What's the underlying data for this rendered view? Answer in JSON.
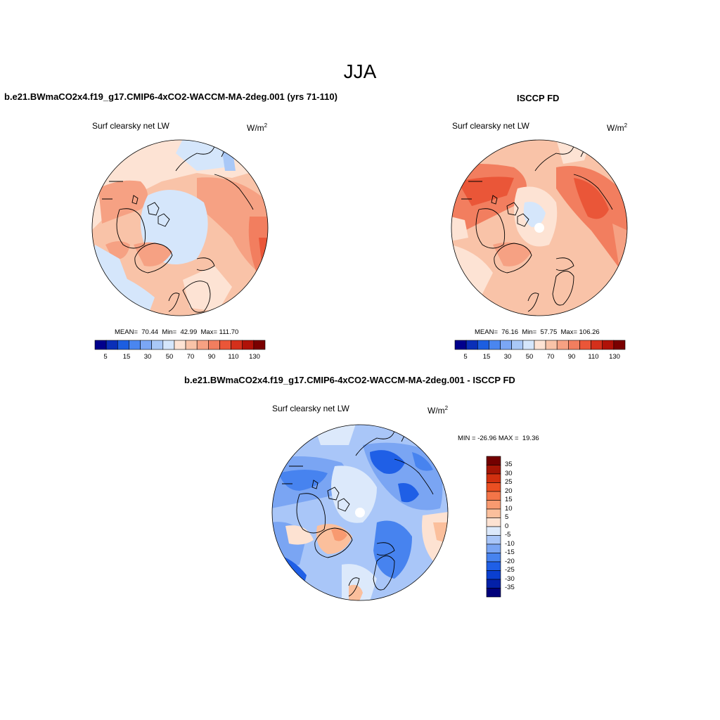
{
  "page_title": "JJA",
  "colors": {
    "coastline": "#000000",
    "abs_scale": [
      "#00008c",
      "#0a2fb8",
      "#1c5ee0",
      "#4a86f0",
      "#7ba7f5",
      "#a9c8f7",
      "#d5e6fb",
      "#fde3d4",
      "#f9c3a8",
      "#f6a183",
      "#f27e5f",
      "#ea5638",
      "#d4301b",
      "#b01208",
      "#7a0000"
    ],
    "diff_scale": [
      "#00007a",
      "#0320a8",
      "#0a3fd0",
      "#1f5fe6",
      "#4783ef",
      "#7aa5f3",
      "#a9c6f8",
      "#dce9fb",
      "#fde2d2",
      "#fbbf9c",
      "#f89a70",
      "#f47548",
      "#eb4f22",
      "#d2300f",
      "#a51505",
      "#730000"
    ]
  },
  "panels": [
    {
      "title": "b.e21.BWmaCO2x4.f19_g17.CMIP6-4xCO2-WACCM-MA-2deg.001 (yrs 71-110)",
      "variable": "Surf clearsky net LW",
      "units_base": "W/m",
      "units_exp": "2",
      "stats": "MEAN=  70.44  Min=  42.99  Max= 111.70",
      "colorbar_ticks": [
        "5",
        "15",
        "30",
        "50",
        "70",
        "90",
        "110",
        "130"
      ]
    },
    {
      "title": "ISCCP FD",
      "variable": "Surf clearsky net LW",
      "units_base": "W/m",
      "units_exp": "2",
      "stats": "MEAN=  76.16  Min=  57.75  Max= 106.26",
      "colorbar_ticks": [
        "5",
        "15",
        "30",
        "50",
        "70",
        "90",
        "110",
        "130"
      ]
    },
    {
      "title": "b.e21.BWmaCO2x4.f19_g17.CMIP6-4xCO2-WACCM-MA-2deg.001 - ISCCP FD",
      "variable": "Surf clearsky net LW",
      "units_base": "W/m",
      "units_exp": "2",
      "stats": "MIN = -26.96 MAX =  19.36",
      "colorbar_ticks": [
        "35",
        "30",
        "25",
        "20",
        "15",
        "10",
        "5",
        "0",
        "-5",
        "-10",
        "-15",
        "-20",
        "-25",
        "-30",
        "-35"
      ]
    }
  ]
}
